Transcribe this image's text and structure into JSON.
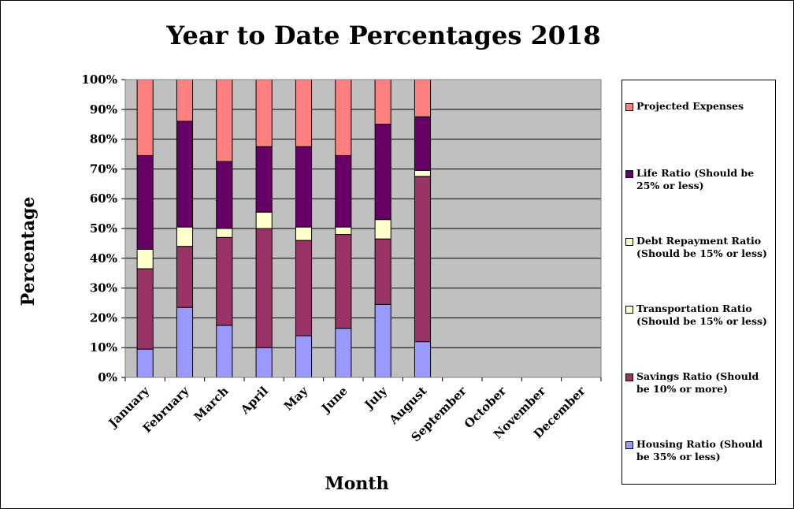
{
  "chart_data": {
    "type": "bar",
    "stacked": true,
    "title": "Year to Date Percentages 2018",
    "xlabel": "Month",
    "ylabel": "Percentage",
    "ylim": [
      0,
      100
    ],
    "yticks": [
      "0%",
      "10%",
      "20%",
      "30%",
      "40%",
      "50%",
      "60%",
      "70%",
      "80%",
      "90%",
      "100%"
    ],
    "grid": true,
    "plot_background": "#C0C0C0",
    "legend_position": "right",
    "categories": [
      "January",
      "February",
      "March",
      "April",
      "May",
      "June",
      "July",
      "August",
      "September",
      "October",
      "November",
      "December"
    ],
    "series": [
      {
        "name": "Housing Ratio (Should be 35% or less)",
        "color": "#9999FF",
        "values": [
          9.5,
          23.5,
          17.5,
          10,
          14,
          16.5,
          24.5,
          12,
          null,
          null,
          null,
          null
        ]
      },
      {
        "name": "Savings Ratio (Should be 10% or more)",
        "color": "#993366",
        "values": [
          27,
          20.5,
          29.5,
          40,
          32,
          31.5,
          22,
          55.5,
          null,
          null,
          null,
          null
        ]
      },
      {
        "name": "Transportation Ratio (Should be 15% or less)",
        "color": "#FFFFCC",
        "values": [
          6.5,
          6.5,
          3,
          5.5,
          4.5,
          2.5,
          6.5,
          2,
          null,
          null,
          null,
          null
        ]
      },
      {
        "name": "Debt Repayment Ratio (Should be 15% or less)",
        "color": "#FFFFCC",
        "values": [
          0,
          0,
          0,
          0,
          0,
          0,
          0,
          0,
          null,
          null,
          null,
          null
        ]
      },
      {
        "name": "Life Ratio (Should be 25% or less)",
        "color": "#660066",
        "values": [
          31.5,
          35.5,
          22.5,
          22,
          27,
          24,
          32,
          18,
          null,
          null,
          null,
          null
        ]
      },
      {
        "name": "Projected Expenses",
        "color": "#FF8080",
        "values": [
          25.5,
          14,
          27.5,
          22.5,
          22.5,
          25.5,
          15,
          12.5,
          null,
          null,
          null,
          null
        ]
      }
    ]
  },
  "legend": {
    "items": [
      {
        "label": "Projected Expenses",
        "color": "#FF8080"
      },
      {
        "label": "Life Ratio (Should be 25% or less)",
        "color": "#660066"
      },
      {
        "label": "Debt Repayment Ratio (Should be 15% or less)",
        "color": "#FFFFCC"
      },
      {
        "label": "Transportation Ratio (Should be 15% or less)",
        "color": "#FFFFCC"
      },
      {
        "label": "Savings Ratio (Should be 10% or more)",
        "color": "#993366"
      },
      {
        "label": "Housing Ratio (Should be 35% or less)",
        "color": "#9999FF"
      }
    ]
  }
}
